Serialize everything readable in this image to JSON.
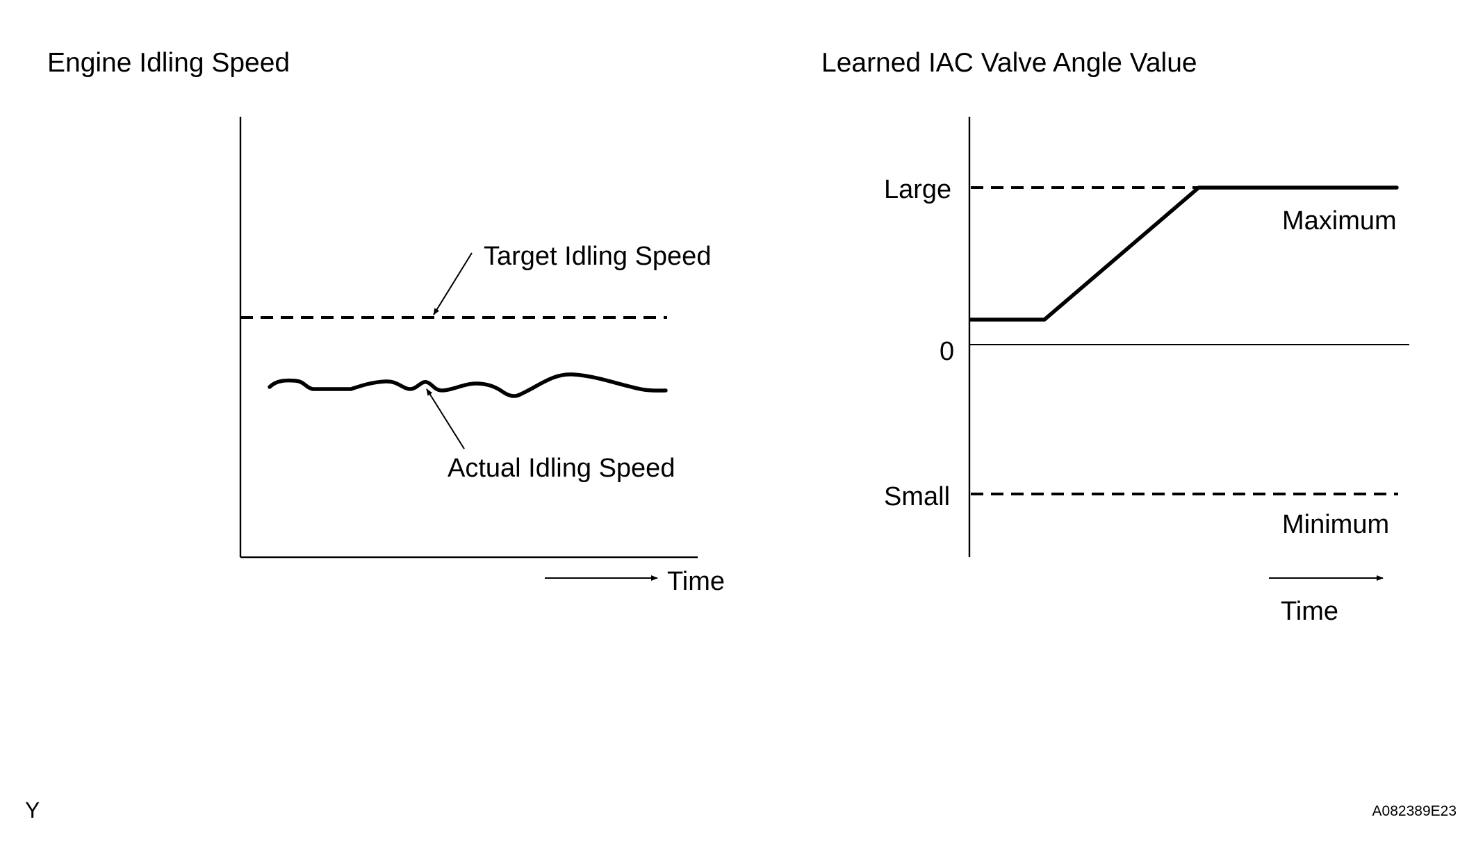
{
  "left_chart": {
    "title": "Engine Idling Speed",
    "target_label": "Target Idling Speed",
    "actual_label": "Actual Idling Speed",
    "time_label": "Time"
  },
  "right_chart": {
    "title": "Learned IAC Valve Angle Value",
    "y_large": "Large",
    "y_zero": "0",
    "y_small": "Small",
    "max_label": "Maximum",
    "min_label": "Minimum",
    "time_label": "Time"
  },
  "corner_left": "Y",
  "figure_code": "A082389E23"
}
